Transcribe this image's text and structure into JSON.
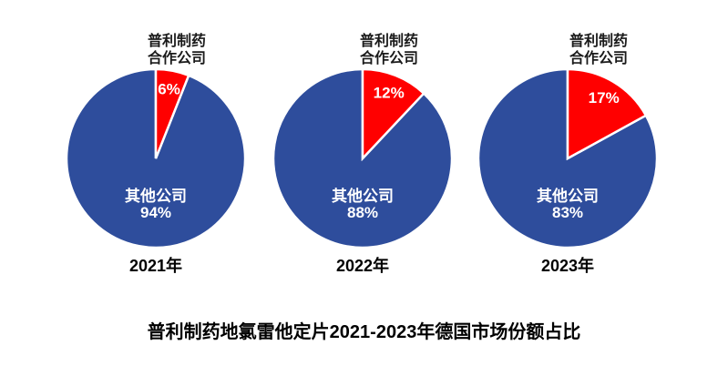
{
  "page": {
    "background": "#FFFFFF"
  },
  "colors": {
    "prli_red": "#FF0000",
    "other_blue": "#2E4D9C",
    "text_black": "#000000",
    "callout_text": "#1A1A1A",
    "slice_label_white": "#FFFFFF",
    "slice_separator": "#FFFFFF"
  },
  "chart_data": {
    "type": "pie",
    "title": "普利制药地氯雷他定片2021-2023年德国市场份额占比",
    "start_angle_deg": 0,
    "direction": "clockwise",
    "legend_position": "none",
    "series_names": [
      "普利制药合作公司",
      "其他公司"
    ],
    "callout": {
      "line1": "普利制药",
      "line2": "合作公司"
    },
    "charts": [
      {
        "year": "2021年",
        "slices": [
          {
            "name": "普利制药合作公司",
            "value": 6,
            "label": "6%",
            "color": "#FF0000"
          },
          {
            "name": "其他公司",
            "value": 94,
            "label": "94%",
            "color": "#2E4D9C"
          }
        ]
      },
      {
        "year": "2022年",
        "slices": [
          {
            "name": "普利制药合作公司",
            "value": 12,
            "label": "12%",
            "color": "#FF0000"
          },
          {
            "name": "其他公司",
            "value": 88,
            "label": "88%",
            "color": "#2E4D9C"
          }
        ]
      },
      {
        "year": "2023年",
        "slices": [
          {
            "name": "普利制药合作公司",
            "value": 17,
            "label": "17%",
            "color": "#FF0000"
          },
          {
            "name": "其他公司",
            "value": 83,
            "label": "83%",
            "color": "#2E4D9C"
          }
        ]
      }
    ]
  }
}
